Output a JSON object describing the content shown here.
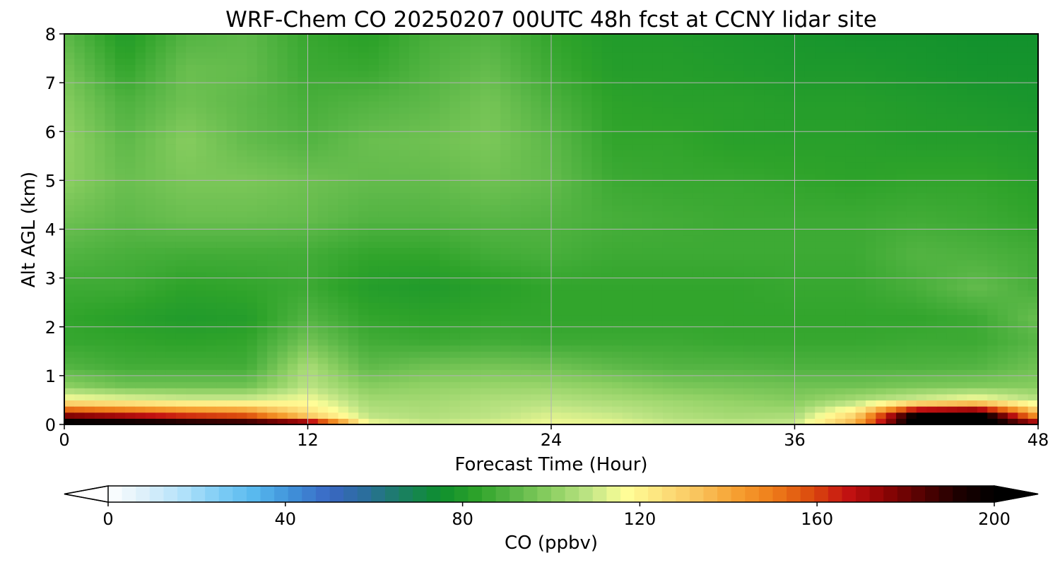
{
  "colors": {
    "colormap": [
      "#ffffff",
      "#dceffa",
      "#b3e2fa",
      "#7fcdf5",
      "#56b8ee",
      "#3f8fd8",
      "#3a67c4",
      "#2a6e9a",
      "#1a8060",
      "#0e8f2e",
      "#2ea32a",
      "#5cb848",
      "#8ccf62",
      "#bde484",
      "#ffff99",
      "#fde17c",
      "#f9c35c",
      "#f6a031",
      "#ee7d1a",
      "#dc4d0e",
      "#c41212",
      "#8f0505",
      "#560202",
      "#1e0000",
      "#000000"
    ],
    "grid": "#b3b3b3",
    "frame": "#000000"
  },
  "chart_data": {
    "type": "heatmap",
    "title": "WRF-Chem CO  20250207 00UTC 48h fcst at CCNY lidar site",
    "xlabel": "Forecast Time (Hour)",
    "ylabel": "Alt AGL (km)",
    "xlim": [
      0,
      48
    ],
    "ylim": [
      0,
      8
    ],
    "xticks": [
      0,
      12,
      24,
      36,
      48
    ],
    "yticks": [
      0,
      1,
      2,
      3,
      4,
      5,
      6,
      7,
      8
    ],
    "grid": true,
    "x_hours": [
      0,
      3,
      6,
      9,
      12,
      15,
      18,
      21,
      24,
      27,
      30,
      33,
      36,
      39,
      42,
      45,
      48
    ],
    "z_km": [
      0,
      0.2,
      0.5,
      0.8,
      1.2,
      1.7,
      2.2,
      2.8,
      3.5,
      4.2,
      5,
      5.8,
      6.6,
      7.3,
      8
    ],
    "co_ppbv": [
      [
        210,
        208,
        203,
        200,
        190,
        116,
        110,
        112,
        115,
        114,
        110,
        109,
        110,
        140,
        210,
        212,
        180
      ],
      [
        175,
        168,
        160,
        155,
        128,
        108,
        106,
        108,
        112,
        110,
        106,
        104,
        105,
        128,
        200,
        205,
        140
      ],
      [
        118,
        115,
        112,
        112,
        116,
        104,
        104,
        106,
        107,
        105,
        103,
        101,
        99,
        105,
        112,
        118,
        108
      ],
      [
        100,
        95,
        95,
        95,
        108,
        99,
        101,
        102,
        102,
        100,
        97,
        96,
        95,
        95,
        97,
        98,
        99
      ],
      [
        90,
        87,
        87,
        87,
        105,
        92,
        95,
        96,
        95,
        92,
        90,
        90,
        89,
        89,
        89,
        90,
        95
      ],
      [
        85,
        84,
        83,
        84,
        96,
        87,
        86,
        87,
        86,
        86,
        86,
        85,
        85,
        85,
        86,
        86,
        91
      ],
      [
        84,
        82,
        80,
        81,
        90,
        84,
        83,
        84,
        84,
        84,
        84,
        84,
        84,
        84,
        84,
        86,
        94
      ],
      [
        86,
        86,
        83,
        84,
        86,
        81,
        80,
        82,
        84,
        84,
        84,
        84,
        85,
        85,
        88,
        93,
        88
      ],
      [
        90,
        88,
        87,
        87,
        87,
        84,
        84,
        87,
        88,
        86,
        86,
        86,
        86,
        86,
        90,
        89,
        87
      ],
      [
        95,
        92,
        94,
        94,
        93,
        90,
        90,
        91,
        90,
        88,
        87,
        86,
        86,
        86,
        87,
        86,
        84
      ],
      [
        100,
        94,
        97,
        97,
        95,
        93,
        93,
        95,
        93,
        86,
        85,
        85,
        84,
        83,
        84,
        84,
        82
      ],
      [
        101,
        92,
        99,
        93,
        90,
        94,
        95,
        97,
        92,
        84,
        84,
        82,
        82,
        82,
        81,
        81,
        80
      ],
      [
        99,
        89,
        95,
        92,
        88,
        90,
        92,
        96,
        89,
        83,
        82,
        82,
        81,
        81,
        80,
        79,
        78
      ],
      [
        96,
        84,
        94,
        93,
        86,
        85,
        90,
        93,
        86,
        81,
        81,
        80,
        79,
        79,
        78,
        77,
        77
      ],
      [
        92,
        80,
        90,
        92,
        85,
        82,
        88,
        90,
        84,
        80,
        80,
        79,
        78,
        77,
        77,
        76,
        76
      ]
    ],
    "colorbar": {
      "label": "CO  (ppbv)",
      "ticks": [
        0,
        40,
        80,
        120,
        160,
        200
      ],
      "range": [
        0,
        200
      ],
      "extend": "both",
      "levels": 64
    }
  }
}
